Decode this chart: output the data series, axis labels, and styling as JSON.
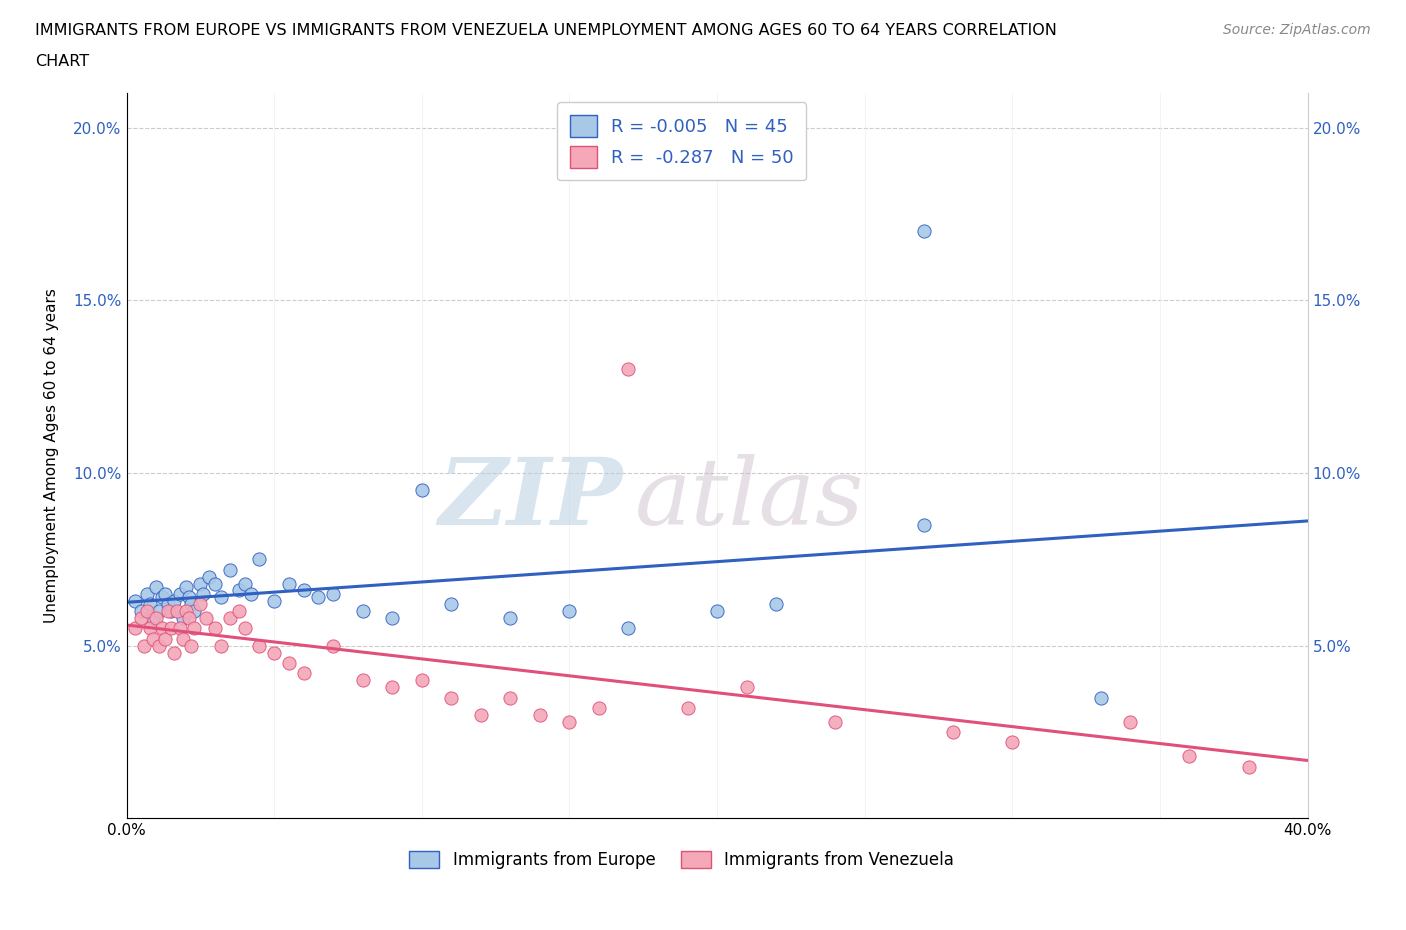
{
  "title_line1": "IMMIGRANTS FROM EUROPE VS IMMIGRANTS FROM VENEZUELA UNEMPLOYMENT AMONG AGES 60 TO 64 YEARS CORRELATION",
  "title_line2": "CHART",
  "source": "Source: ZipAtlas.com",
  "ylabel": "Unemployment Among Ages 60 to 64 years",
  "xlim": [
    0.0,
    0.4
  ],
  "ylim": [
    0.0,
    0.21
  ],
  "xticks": [
    0.0,
    0.05,
    0.1,
    0.15,
    0.2,
    0.25,
    0.3,
    0.35,
    0.4
  ],
  "yticks": [
    0.0,
    0.05,
    0.1,
    0.15,
    0.2
  ],
  "europe_color": "#a8c8e8",
  "venezuela_color": "#f4a8b8",
  "europe_line_color": "#3060c0",
  "venezuela_line_color": "#e0507a",
  "watermark": "ZIPatlas",
  "background_color": "#ffffff",
  "grid_color": "#cccccc",
  "europe_x": [
    0.003,
    0.005,
    0.007,
    0.008,
    0.009,
    0.01,
    0.011,
    0.012,
    0.013,
    0.014,
    0.015,
    0.016,
    0.018,
    0.019,
    0.02,
    0.021,
    0.022,
    0.023,
    0.025,
    0.026,
    0.028,
    0.03,
    0.032,
    0.035,
    0.038,
    0.04,
    0.042,
    0.045,
    0.05,
    0.055,
    0.06,
    0.065,
    0.07,
    0.08,
    0.09,
    0.1,
    0.11,
    0.13,
    0.15,
    0.17,
    0.2,
    0.22,
    0.27,
    0.33,
    0.27
  ],
  "europe_y": [
    0.063,
    0.06,
    0.065,
    0.062,
    0.058,
    0.067,
    0.06,
    0.064,
    0.065,
    0.062,
    0.06,
    0.063,
    0.065,
    0.058,
    0.067,
    0.064,
    0.062,
    0.06,
    0.068,
    0.065,
    0.07,
    0.068,
    0.064,
    0.072,
    0.066,
    0.068,
    0.065,
    0.075,
    0.063,
    0.068,
    0.066,
    0.064,
    0.065,
    0.06,
    0.058,
    0.095,
    0.062,
    0.058,
    0.06,
    0.055,
    0.06,
    0.062,
    0.085,
    0.035,
    0.17
  ],
  "venezuela_x": [
    0.003,
    0.005,
    0.006,
    0.007,
    0.008,
    0.009,
    0.01,
    0.011,
    0.012,
    0.013,
    0.014,
    0.015,
    0.016,
    0.017,
    0.018,
    0.019,
    0.02,
    0.021,
    0.022,
    0.023,
    0.025,
    0.027,
    0.03,
    0.032,
    0.035,
    0.038,
    0.04,
    0.045,
    0.05,
    0.055,
    0.06,
    0.07,
    0.08,
    0.09,
    0.1,
    0.11,
    0.12,
    0.13,
    0.14,
    0.15,
    0.16,
    0.17,
    0.19,
    0.21,
    0.24,
    0.28,
    0.3,
    0.34,
    0.36,
    0.38
  ],
  "venezuela_y": [
    0.055,
    0.058,
    0.05,
    0.06,
    0.055,
    0.052,
    0.058,
    0.05,
    0.055,
    0.052,
    0.06,
    0.055,
    0.048,
    0.06,
    0.055,
    0.052,
    0.06,
    0.058,
    0.05,
    0.055,
    0.062,
    0.058,
    0.055,
    0.05,
    0.058,
    0.06,
    0.055,
    0.05,
    0.048,
    0.045,
    0.042,
    0.05,
    0.04,
    0.038,
    0.04,
    0.035,
    0.03,
    0.035,
    0.03,
    0.028,
    0.032,
    0.13,
    0.032,
    0.038,
    0.028,
    0.025,
    0.022,
    0.028,
    0.018,
    0.015
  ]
}
